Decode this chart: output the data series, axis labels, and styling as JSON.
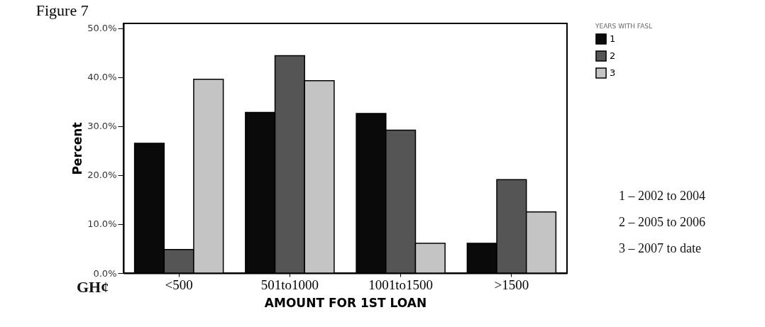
{
  "chart_data": {
    "type": "bar",
    "title": "Figure 7",
    "categories": [
      "<500",
      "501to1000",
      "1001to1500",
      ">1500"
    ],
    "series": [
      {
        "name": "1",
        "color": "#0a0a0a",
        "values": [
          26.5,
          32.8,
          32.6,
          6.1
        ]
      },
      {
        "name": "2",
        "color": "#555555",
        "values": [
          4.8,
          44.4,
          29.2,
          19.1
        ]
      },
      {
        "name": "3",
        "color": "#c4c4c4",
        "values": [
          39.6,
          39.3,
          6.1,
          12.5
        ]
      }
    ],
    "xlabel": "AMOUNT FOR 1ST LOAN",
    "ylabel": "Percent",
    "legend_title": "YEARS WITH FASL",
    "legend": "top right",
    "ylim": [
      0,
      51
    ],
    "yticks": [
      {
        "value": 0,
        "label": "0.0%"
      },
      {
        "value": 10,
        "label": "10.0%"
      },
      {
        "value": 20,
        "label": "20.0%"
      },
      {
        "value": 30,
        "label": "30.0%"
      },
      {
        "value": 40,
        "label": "40.0%"
      },
      {
        "value": 50,
        "label": "50.0%"
      }
    ],
    "annotations": [
      "GH¢",
      "1 – 2002 to 2004",
      "2 – 2005 to 2006",
      "3 – 2007 to date"
    ]
  }
}
